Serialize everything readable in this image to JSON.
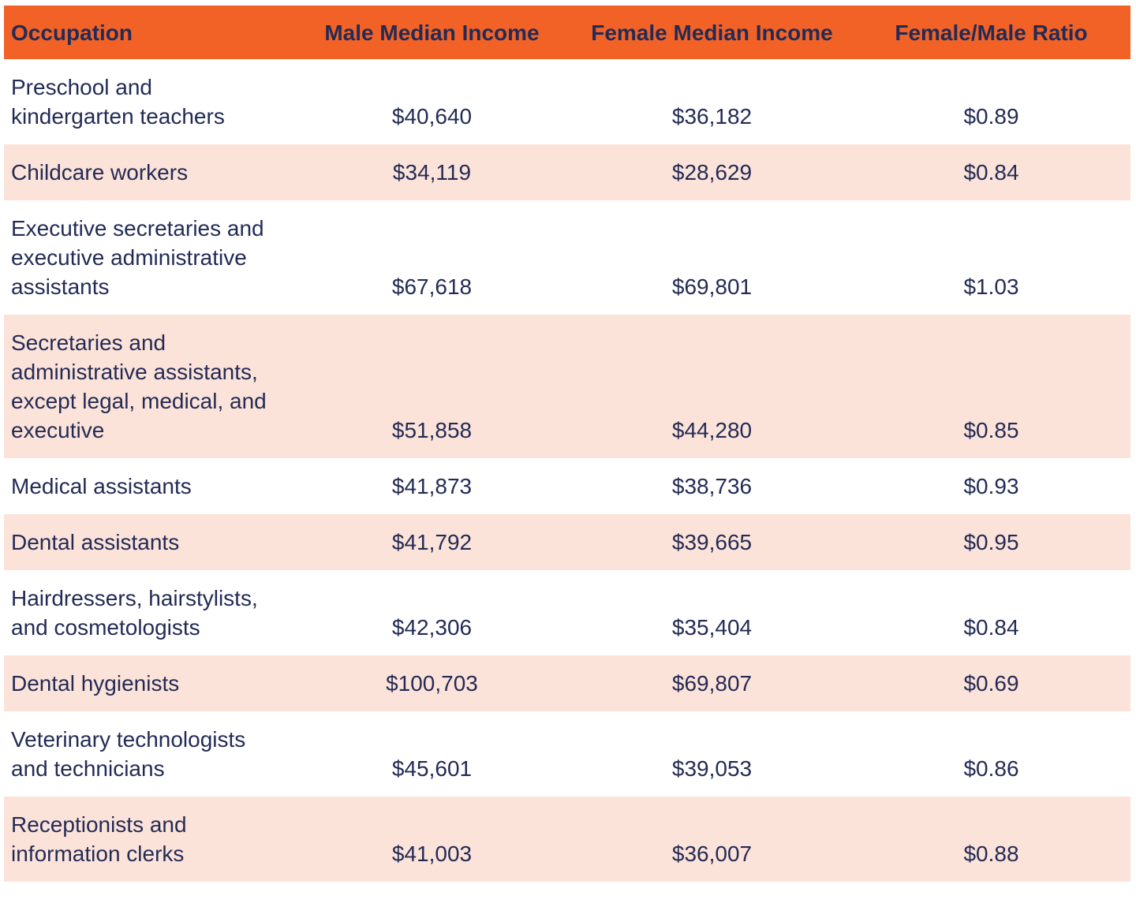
{
  "chart_data": {
    "type": "table",
    "columns": [
      "Occupation",
      "Male Median Income",
      "Female Median Income",
      "Female/Male Ratio"
    ],
    "rows": [
      {
        "occupation": "Preschool and kindergarten teachers",
        "male_median_income": "$40,640",
        "female_median_income": "$36,182",
        "female_male_ratio": "$0.89"
      },
      {
        "occupation": "Childcare workers",
        "male_median_income": "$34,119",
        "female_median_income": "$28,629",
        "female_male_ratio": "$0.84"
      },
      {
        "occupation": "Executive secretaries and executive administrative assistants",
        "male_median_income": "$67,618",
        "female_median_income": "$69,801",
        "female_male_ratio": "$1.03"
      },
      {
        "occupation": "Secretaries and administrative assistants, except legal, medical, and executive",
        "male_median_income": "$51,858",
        "female_median_income": "$44,280",
        "female_male_ratio": "$0.85"
      },
      {
        "occupation": "Medical assistants",
        "male_median_income": "$41,873",
        "female_median_income": "$38,736",
        "female_male_ratio": "$0.93"
      },
      {
        "occupation": "Dental assistants",
        "male_median_income": "$41,792",
        "female_median_income": "$39,665",
        "female_male_ratio": "$0.95"
      },
      {
        "occupation": "Hairdressers, hairstylists, and cosmetologists",
        "male_median_income": "$42,306",
        "female_median_income": "$35,404",
        "female_male_ratio": "$0.84"
      },
      {
        "occupation": "Dental hygienists",
        "male_median_income": "$100,703",
        "female_median_income": "$69,807",
        "female_male_ratio": "$0.69"
      },
      {
        "occupation": "Veterinary technologists and technicians",
        "male_median_income": "$45,601",
        "female_median_income": "$39,053",
        "female_male_ratio": "$0.86"
      },
      {
        "occupation": "Receptionists and information clerks",
        "male_median_income": "$41,003",
        "female_median_income": "$36,007",
        "female_male_ratio": "$0.88"
      }
    ]
  },
  "colors": {
    "header_bg": "#F26227",
    "alt_row_bg": "#FCE3D9",
    "row_bg": "#FFFFFF",
    "text": "#232B55"
  }
}
